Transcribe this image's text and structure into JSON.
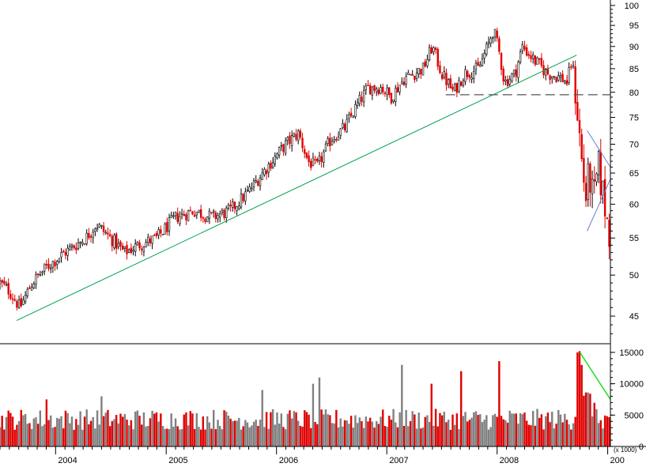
{
  "chart_data": [
    {
      "type": "candlestick",
      "panel": "price",
      "scale": "log",
      "ylim": [
        42,
        101
      ],
      "y_ticks": [
        45,
        50,
        55,
        60,
        65,
        70,
        75,
        80,
        85,
        90,
        95,
        100
      ],
      "x_ticks": [
        "2004",
        "2005",
        "2006",
        "2007",
        "2008",
        "200"
      ],
      "x_range": [
        "2003-07-01",
        "2009-01-10"
      ],
      "colors": {
        "up": "#000000",
        "down": "#e00000"
      },
      "weekly_close_anchors": [
        [
          "2003-07-01",
          49
        ],
        [
          "2003-08-01",
          48
        ],
        [
          "2003-09-05",
          46
        ],
        [
          "2003-10-15",
          49
        ],
        [
          "2003-12-01",
          51
        ],
        [
          "2004-02-01",
          53
        ],
        [
          "2004-04-10",
          55
        ],
        [
          "2004-05-15",
          57
        ],
        [
          "2004-07-01",
          55
        ],
        [
          "2004-08-15",
          53
        ],
        [
          "2004-10-01",
          54
        ],
        [
          "2004-12-01",
          55
        ],
        [
          "2005-02-01",
          58
        ],
        [
          "2005-04-01",
          59
        ],
        [
          "2005-06-01",
          58
        ],
        [
          "2005-08-01",
          59
        ],
        [
          "2005-10-01",
          62
        ],
        [
          "2005-12-01",
          66
        ],
        [
          "2006-02-01",
          70
        ],
        [
          "2006-03-15",
          72
        ],
        [
          "2006-04-15",
          67
        ],
        [
          "2006-05-15",
          66
        ],
        [
          "2006-07-01",
          71
        ],
        [
          "2006-08-15",
          73
        ],
        [
          "2006-10-01",
          78
        ],
        [
          "2006-11-01",
          81
        ],
        [
          "2006-12-15",
          81
        ],
        [
          "2007-01-15",
          79
        ],
        [
          "2007-03-01",
          83
        ],
        [
          "2007-05-01",
          85
        ],
        [
          "2007-06-01",
          90
        ],
        [
          "2007-07-01",
          84
        ],
        [
          "2007-08-10",
          80
        ],
        [
          "2007-09-15",
          84
        ],
        [
          "2007-11-01",
          85
        ],
        [
          "2007-12-01",
          90
        ],
        [
          "2007-12-20",
          94
        ],
        [
          "2008-01-10",
          88
        ],
        [
          "2008-01-25",
          82
        ],
        [
          "2008-03-01",
          84
        ],
        [
          "2008-03-25",
          90
        ],
        [
          "2008-05-01",
          87
        ],
        [
          "2008-06-15",
          84
        ],
        [
          "2008-08-01",
          83
        ],
        [
          "2008-08-20",
          82
        ],
        [
          "2008-09-05",
          87
        ],
        [
          "2008-09-20",
          78
        ],
        [
          "2008-10-05",
          68
        ],
        [
          "2008-10-20",
          61
        ],
        [
          "2008-11-01",
          65
        ],
        [
          "2008-11-15",
          60
        ],
        [
          "2008-12-01",
          66
        ],
        [
          "2008-12-15",
          62
        ],
        [
          "2009-01-01",
          57
        ],
        [
          "2009-01-07",
          56
        ]
      ],
      "annotations": [
        {
          "type": "trendline",
          "color": "#00a050",
          "from": [
            "2003-08-25",
            44.5
          ],
          "to": [
            "2008-09-20",
            88
          ]
        },
        {
          "type": "horizontal",
          "style": "dashed",
          "color": "#555555",
          "from": [
            "2007-07-15",
            79.5
          ],
          "to": [
            "2009-01-10",
            79.5
          ]
        },
        {
          "type": "trendline",
          "color": "#6b7fd0",
          "from": [
            "2008-10-25",
            56
          ],
          "to": [
            "2009-01-10",
            64
          ]
        },
        {
          "type": "trendline",
          "color": "#6b7fd0",
          "from": [
            "2008-10-25",
            72.5
          ],
          "to": [
            "2009-01-10",
            66
          ]
        }
      ]
    },
    {
      "type": "bar",
      "panel": "volume",
      "unit_label": "(x 1000)",
      "ylim": [
        0,
        16000
      ],
      "y_ticks": [
        0,
        5000,
        10000,
        15000
      ],
      "colors": {
        "up": "#808080",
        "down": "#e00000"
      },
      "typical_volume": 4800,
      "spikes": [
        [
          "2003-12-01",
          7500
        ],
        [
          "2004-06-01",
          8000
        ],
        [
          "2005-11-15",
          9000
        ],
        [
          "2006-05-01",
          10000
        ],
        [
          "2006-05-20",
          11000
        ],
        [
          "2007-02-20",
          13000
        ],
        [
          "2007-06-01",
          10000
        ],
        [
          "2007-09-01",
          12000
        ],
        [
          "2008-01-10",
          13600
        ],
        [
          "2008-09-20",
          15000
        ],
        [
          "2008-10-01",
          15200
        ],
        [
          "2008-10-10",
          13000
        ]
      ],
      "annotations": [
        {
          "type": "trendline",
          "color": "#22dd22",
          "from": [
            "2008-10-01",
            15000
          ],
          "to": [
            "2009-01-10",
            7500
          ]
        }
      ]
    }
  ]
}
